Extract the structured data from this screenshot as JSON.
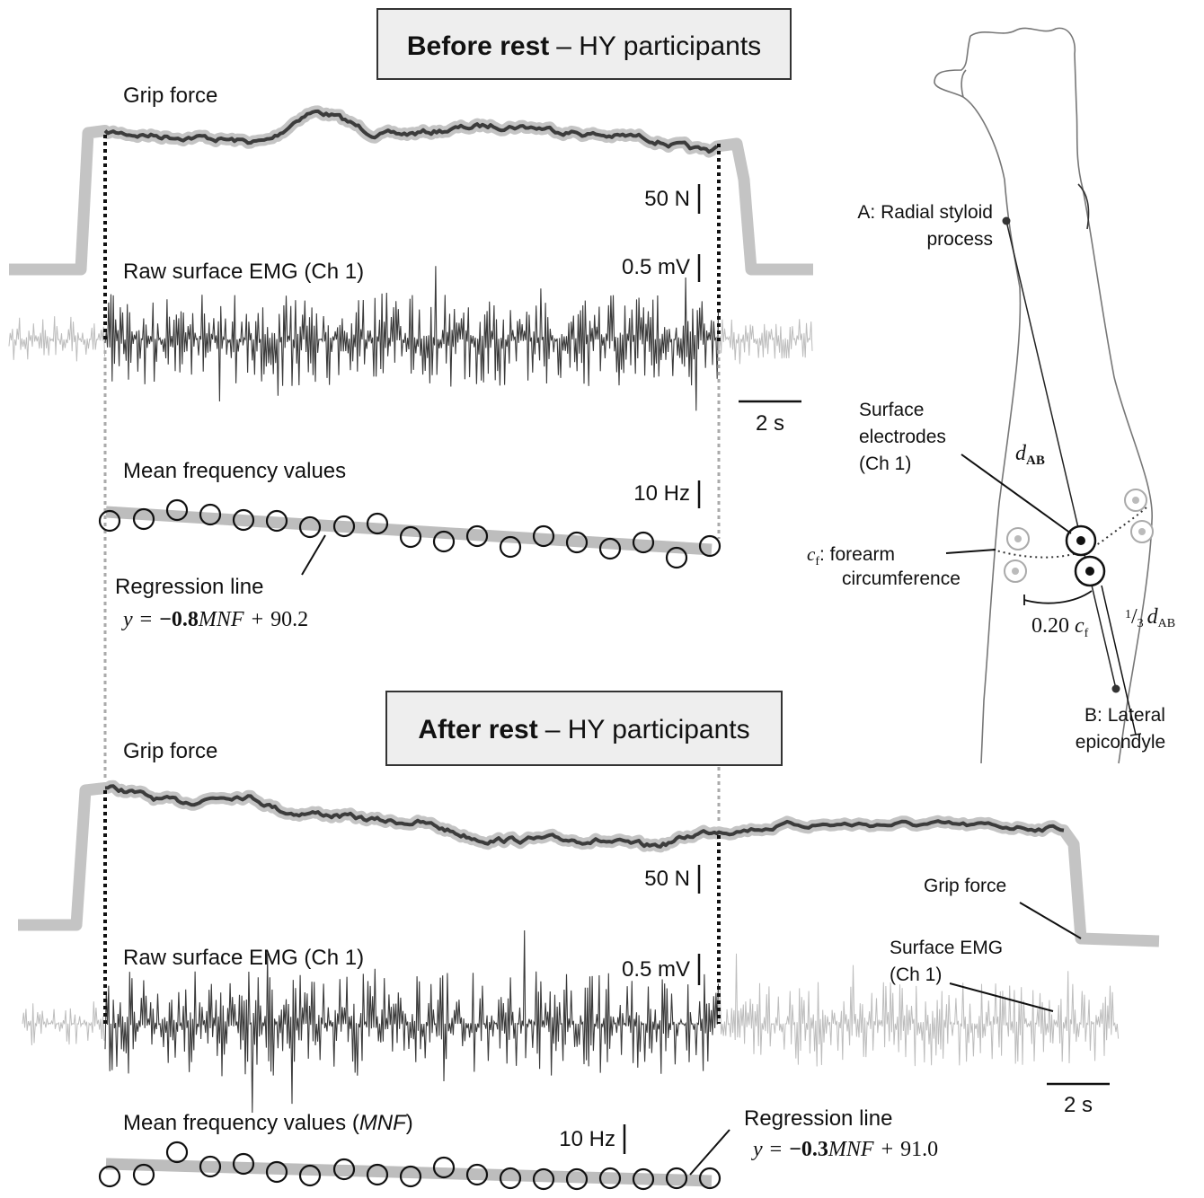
{
  "panels": [
    {
      "title": {
        "bold": "Before rest",
        "rest": "– HY participants"
      },
      "grip_label": "Grip force",
      "force_scale": "50 N",
      "emg_label": "Raw surface EMG (Ch 1)",
      "emg_scale": "0.5 mV",
      "time_scale": "2 s",
      "mnf_label": [
        "Mean frequency values"
      ],
      "mnf_scale": "10 Hz",
      "regression_label": "Regression line",
      "equation": [
        "y",
        "=",
        "−0.8",
        "MNF",
        "+",
        "90.2"
      ]
    },
    {
      "title": {
        "bold": "After rest",
        "rest": "– HY participants"
      },
      "grip_label": "Grip force",
      "force_scale": "50 N",
      "emg_label": "Raw surface EMG (Ch 1)",
      "emg_scale": "0.5 mV",
      "time_scale": "2 s",
      "mnf_label": [
        "Mean frequency values (",
        "MNF",
        ")"
      ],
      "mnf_scale": "10 Hz",
      "regression_label": "Regression line",
      "equation": [
        "y",
        "=",
        "−0.3",
        "MNF",
        "+",
        "91.0"
      ]
    }
  ],
  "arm": {
    "point_a": [
      "A: Radial styloid",
      "process"
    ],
    "electrodes": [
      "Surface",
      "electrodes",
      "(Ch 1)"
    ],
    "d_ab": [
      "d",
      "AB"
    ],
    "c_f": [
      "c",
      "f",
      ":  forearm",
      "circumference"
    ],
    "arc_label": [
      "0.20",
      "c",
      "f"
    ],
    "third_label": [
      "1",
      "/",
      "3",
      "d",
      "AB"
    ],
    "point_b": [
      "B: Lateral",
      "epicondyle"
    ],
    "grip_force": "Grip force",
    "surface_emg": [
      "Surface EMG",
      "(Ch 1)"
    ]
  }
}
